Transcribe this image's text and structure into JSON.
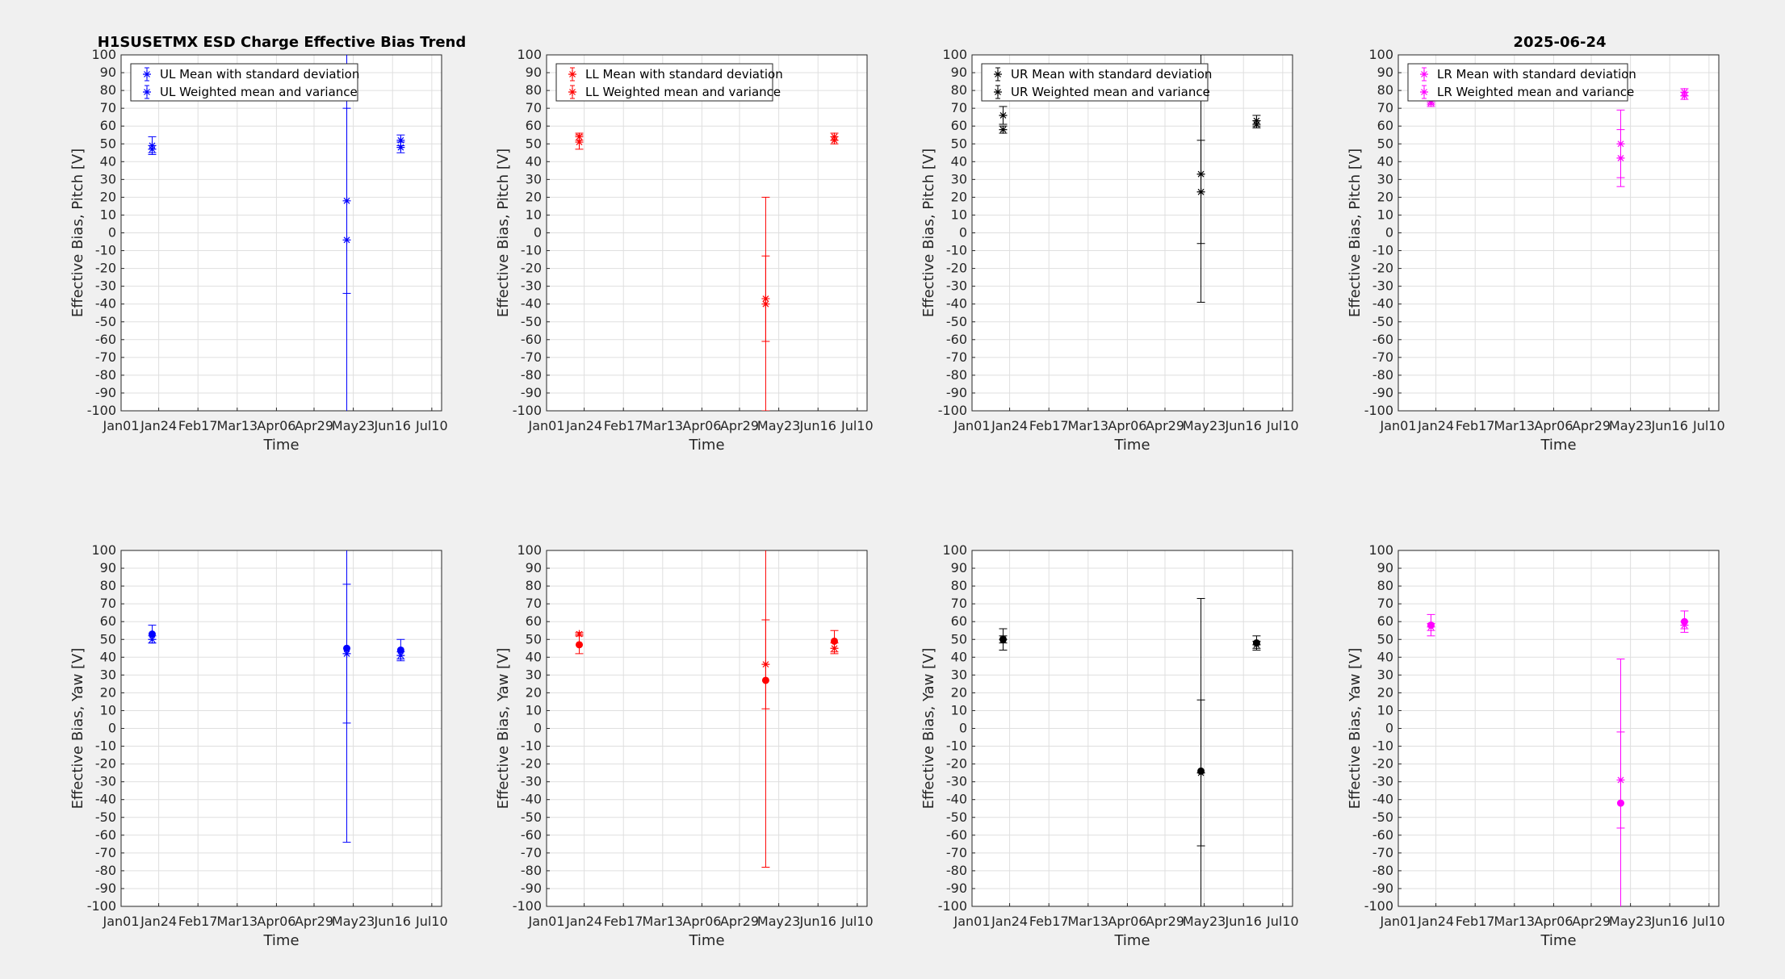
{
  "figure": {
    "title": "H1SUSETMX ESD Charge Effective Bias Trend",
    "date": "2025-06-24"
  },
  "chart_data": [
    {
      "type": "scatter",
      "channel": "UL",
      "color": "#0000ff",
      "row": "pitch",
      "xlabel": "Time",
      "ylabel": "Effective Bias, Pitch [V]",
      "xticks": [
        "Jan01",
        "Jan24",
        "Feb17",
        "Mar13",
        "Apr06",
        "Apr29",
        "May23",
        "Jun16",
        "Jul10"
      ],
      "ylim": [
        -100,
        100
      ],
      "grid": "on",
      "legend_position": "top-left",
      "series": [
        {
          "name": "UL Mean with standard deviation",
          "marker": "asterisk",
          "x": [
            "Jan20",
            "May19",
            "Jun21"
          ],
          "y": [
            49,
            18,
            52
          ],
          "err": [
            5,
            52,
            3
          ]
        },
        {
          "name": "UL Weighted mean and variance",
          "marker": "asterisk",
          "x": [
            "Jan20",
            "May19",
            "Jun21"
          ],
          "y": [
            47,
            -4,
            48
          ],
          "err": [
            2,
            148,
            3
          ]
        }
      ]
    },
    {
      "type": "scatter",
      "channel": "LL",
      "color": "#ff0000",
      "row": "pitch",
      "xlabel": "Time",
      "ylabel": "Effective Bias, Pitch [V]",
      "xticks": [
        "Jan01",
        "Jan24",
        "Feb17",
        "Mar13",
        "Apr06",
        "Apr29",
        "May23",
        "Jun16",
        "Jul10"
      ],
      "ylim": [
        -100,
        100
      ],
      "grid": "on",
      "legend_position": "top-left",
      "series": [
        {
          "name": "LL Mean with standard deviation",
          "marker": "asterisk",
          "x": [
            "Jan21",
            "May15",
            "Jun26"
          ],
          "y": [
            51,
            -37,
            52
          ],
          "err": [
            4,
            24,
            2
          ]
        },
        {
          "name": "LL Weighted mean and variance",
          "marker": "asterisk",
          "x": [
            "Jan21",
            "May15",
            "Jun26"
          ],
          "y": [
            54,
            -40,
            54
          ],
          "err": [
            2,
            60,
            2
          ]
        }
      ]
    },
    {
      "type": "scatter",
      "channel": "UR",
      "color": "#000000",
      "row": "pitch",
      "xlabel": "Time",
      "ylabel": "Effective Bias, Pitch [V]",
      "xticks": [
        "Jan01",
        "Jan24",
        "Feb17",
        "Mar13",
        "Apr06",
        "Apr29",
        "May23",
        "Jun16",
        "Jul10"
      ],
      "ylim": [
        -100,
        100
      ],
      "grid": "on",
      "legend_position": "top-left",
      "series": [
        {
          "name": "UR Mean with standard deviation",
          "marker": "asterisk",
          "x": [
            "Jan20",
            "May21",
            "Jun24"
          ],
          "y": [
            66,
            33,
            63
          ],
          "err": [
            5,
            72,
            3
          ]
        },
        {
          "name": "UR Weighted mean and variance",
          "marker": "asterisk",
          "x": [
            "Jan20",
            "May21",
            "Jun24"
          ],
          "y": [
            58,
            23,
            61
          ],
          "err": [
            2,
            29,
            2
          ]
        }
      ]
    },
    {
      "type": "scatter",
      "channel": "LR",
      "color": "#ff00ff",
      "row": "pitch",
      "xlabel": "Time",
      "ylabel": "Effective Bias, Pitch [V]",
      "xticks": [
        "Jan01",
        "Jan24",
        "Feb17",
        "Mar13",
        "Apr06",
        "Apr29",
        "May23",
        "Jun16",
        "Jul10"
      ],
      "ylim": [
        -100,
        100
      ],
      "grid": "on",
      "legend_position": "top-left",
      "series": [
        {
          "name": "LR Mean with standard deviation",
          "marker": "asterisk",
          "x": [
            "Jan21",
            "May17",
            "Jun25"
          ],
          "y": [
            74,
            50,
            79
          ],
          "err": [
            2,
            19,
            2
          ]
        },
        {
          "name": "LR Weighted mean and variance",
          "marker": "asterisk",
          "x": [
            "Jan21",
            "May17",
            "Jun25"
          ],
          "y": [
            73,
            42,
            77
          ],
          "err": [
            2,
            16,
            2
          ]
        }
      ]
    },
    {
      "type": "scatter",
      "channel": "UL",
      "color": "#0000ff",
      "row": "yaw",
      "xlabel": "Time",
      "ylabel": "Effective Bias, Yaw [V]",
      "xticks": [
        "Jan01",
        "Jan24",
        "Feb17",
        "Mar13",
        "Apr06",
        "Apr29",
        "May23",
        "Jun16",
        "Jul10"
      ],
      "ylim": [
        -100,
        100
      ],
      "grid": "on",
      "series": [
        {
          "name": "UL Mean with standard deviation",
          "marker": "dot",
          "x": [
            "Jan20",
            "May19",
            "Jun21"
          ],
          "y": [
            53,
            45,
            44
          ],
          "err": [
            5,
            109,
            6
          ]
        },
        {
          "name": "UL Weighted mean and variance",
          "marker": "asterisk",
          "x": [
            "Jan20",
            "May19",
            "Jun21"
          ],
          "y": [
            50,
            42,
            41
          ],
          "err": [
            2,
            39,
            2
          ]
        }
      ]
    },
    {
      "type": "scatter",
      "channel": "LL",
      "color": "#ff0000",
      "row": "yaw",
      "xlabel": "Time",
      "ylabel": "Effective Bias, Yaw [V]",
      "xticks": [
        "Jan01",
        "Jan24",
        "Feb17",
        "Mar13",
        "Apr06",
        "Apr29",
        "May23",
        "Jun16",
        "Jul10"
      ],
      "ylim": [
        -100,
        100
      ],
      "grid": "on",
      "series": [
        {
          "name": "LL Mean with standard deviation",
          "marker": "dot",
          "x": [
            "Jan21",
            "May15",
            "Jun26"
          ],
          "y": [
            47,
            27,
            49
          ],
          "err": [
            5,
            105,
            6
          ]
        },
        {
          "name": "LL Weighted mean and variance",
          "marker": "asterisk",
          "x": [
            "Jan21",
            "May15",
            "Jun26"
          ],
          "y": [
            53,
            36,
            45
          ],
          "err": [
            1,
            25,
            3
          ]
        }
      ]
    },
    {
      "type": "scatter",
      "channel": "UR",
      "color": "#000000",
      "row": "yaw",
      "xlabel": "Time",
      "ylabel": "Effective Bias, Yaw [V]",
      "xticks": [
        "Jan01",
        "Jan24",
        "Feb17",
        "Mar13",
        "Apr06",
        "Apr29",
        "May23",
        "Jun16",
        "Jul10"
      ],
      "ylim": [
        -100,
        100
      ],
      "grid": "on",
      "series": [
        {
          "name": "UR Mean with standard deviation",
          "marker": "dot",
          "x": [
            "Jan20",
            "May21",
            "Jun24"
          ],
          "y": [
            50,
            -24,
            48
          ],
          "err": [
            6,
            97,
            4
          ]
        },
        {
          "name": "UR Weighted mean and variance",
          "marker": "asterisk",
          "x": [
            "Jan20",
            "May21",
            "Jun24"
          ],
          "y": [
            50,
            -25,
            47
          ],
          "err": [
            2,
            41,
            2
          ]
        }
      ]
    },
    {
      "type": "scatter",
      "channel": "LR",
      "color": "#ff00ff",
      "row": "yaw",
      "xlabel": "Time",
      "ylabel": "Effective Bias, Yaw [V]",
      "xticks": [
        "Jan01",
        "Jan24",
        "Feb17",
        "Mar13",
        "Apr06",
        "Apr29",
        "May23",
        "Jun16",
        "Jul10"
      ],
      "ylim": [
        -100,
        100
      ],
      "grid": "on",
      "series": [
        {
          "name": "LR Mean with standard deviation",
          "marker": "dot",
          "x": [
            "Jan21",
            "May17",
            "Jun25"
          ],
          "y": [
            58,
            -42,
            60
          ],
          "err": [
            6,
            81,
            6
          ]
        },
        {
          "name": "LR Weighted mean and variance",
          "marker": "asterisk",
          "x": [
            "Jan21",
            "May17",
            "Jun25"
          ],
          "y": [
            57,
            -29,
            58
          ],
          "err": [
            2,
            27,
            2
          ]
        }
      ]
    }
  ]
}
